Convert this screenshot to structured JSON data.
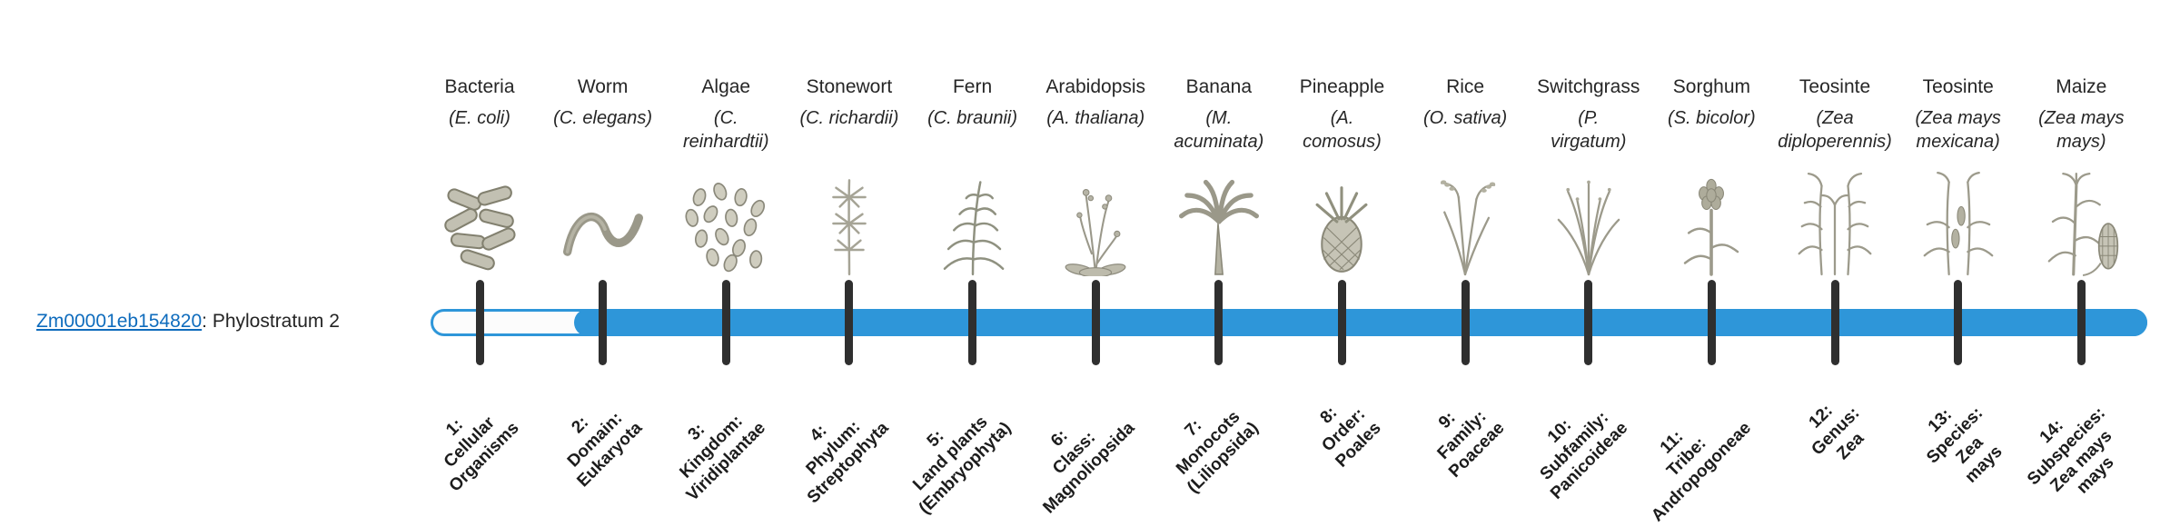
{
  "gene": {
    "id": "Zm00001eb154820",
    "suffix": ": Phylostratum 2"
  },
  "link_color": "#0f6cbd",
  "timeline": {
    "track_color": "#2e96d9",
    "fill_color": "#2e96d9",
    "tick_color": "#2f2f2f",
    "filled_from_stratum": 2,
    "total_strata": 14
  },
  "strata": [
    {
      "index": 1,
      "organism": "Bacteria",
      "sci_lines": [
        "(E. coli)"
      ],
      "icon": "bacteria-icon",
      "tick_lines": [
        "1:",
        "Cellular",
        "Organisms"
      ]
    },
    {
      "index": 2,
      "organism": "Worm",
      "sci_lines": [
        "(C. elegans)"
      ],
      "icon": "worm-icon",
      "tick_lines": [
        "2:",
        "Domain:",
        "Eukaryota"
      ]
    },
    {
      "index": 3,
      "organism": "Algae",
      "sci_lines": [
        "(C.",
        "reinhardtii)"
      ],
      "icon": "algae-icon",
      "tick_lines": [
        "3:",
        "Kingdom:",
        "Viridiplantae"
      ]
    },
    {
      "index": 4,
      "organism": "Stonewort",
      "sci_lines": [
        "(C. richardii)"
      ],
      "icon": "stonewort-icon",
      "tick_lines": [
        "4:",
        "Phylum:",
        "Streptophyta"
      ]
    },
    {
      "index": 5,
      "organism": "Fern",
      "sci_lines": [
        "(C. braunii)"
      ],
      "icon": "fern-icon",
      "tick_lines": [
        "5:",
        "Land plants",
        "(Embryophyta)"
      ]
    },
    {
      "index": 6,
      "organism": "Arabidopsis",
      "sci_lines": [
        "(A. thaliana)"
      ],
      "icon": "arabidopsis-icon",
      "tick_lines": [
        "6:",
        "Class:",
        "Magnoliopsida"
      ]
    },
    {
      "index": 7,
      "organism": "Banana",
      "sci_lines": [
        "(M.",
        "acuminata)"
      ],
      "icon": "banana-icon",
      "tick_lines": [
        "7:",
        "Monocots",
        "(Liliopsida)"
      ]
    },
    {
      "index": 8,
      "organism": "Pineapple",
      "sci_lines": [
        "(A.",
        "comosus)"
      ],
      "icon": "pineapple-icon",
      "tick_lines": [
        "8:",
        "Order:",
        "Poales"
      ]
    },
    {
      "index": 9,
      "organism": "Rice",
      "sci_lines": [
        "(O. sativa)"
      ],
      "icon": "rice-icon",
      "tick_lines": [
        "9:",
        "Family:",
        "Poaceae"
      ]
    },
    {
      "index": 10,
      "organism": "Switchgrass",
      "sci_lines": [
        "(P.",
        "virgatum)"
      ],
      "icon": "switchgrass-icon",
      "tick_lines": [
        "10:",
        "Subfamily:",
        "Panicoideae"
      ]
    },
    {
      "index": 11,
      "organism": "Sorghum",
      "sci_lines": [
        "(S. bicolor)"
      ],
      "icon": "sorghum-icon",
      "tick_lines": [
        "11:",
        "Tribe:",
        "Andropogoneae"
      ]
    },
    {
      "index": 12,
      "organism": "Teosinte",
      "sci_lines": [
        "(Zea",
        "diploperennis)"
      ],
      "icon": "teosinte-diploperennis-icon",
      "tick_lines": [
        "12:",
        "Genus:",
        "Zea"
      ]
    },
    {
      "index": 13,
      "organism": "Teosinte",
      "sci_lines": [
        "(Zea mays",
        "mexicana)"
      ],
      "icon": "teosinte-mexicana-icon",
      "tick_lines": [
        "13:",
        "Species:",
        "Zea",
        "mays"
      ]
    },
    {
      "index": 14,
      "organism": "Maize",
      "sci_lines": [
        "(Zea mays",
        "mays)"
      ],
      "icon": "maize-icon",
      "tick_lines": [
        "14:",
        "Subspecies:",
        "Zea mays",
        "mays"
      ]
    }
  ]
}
